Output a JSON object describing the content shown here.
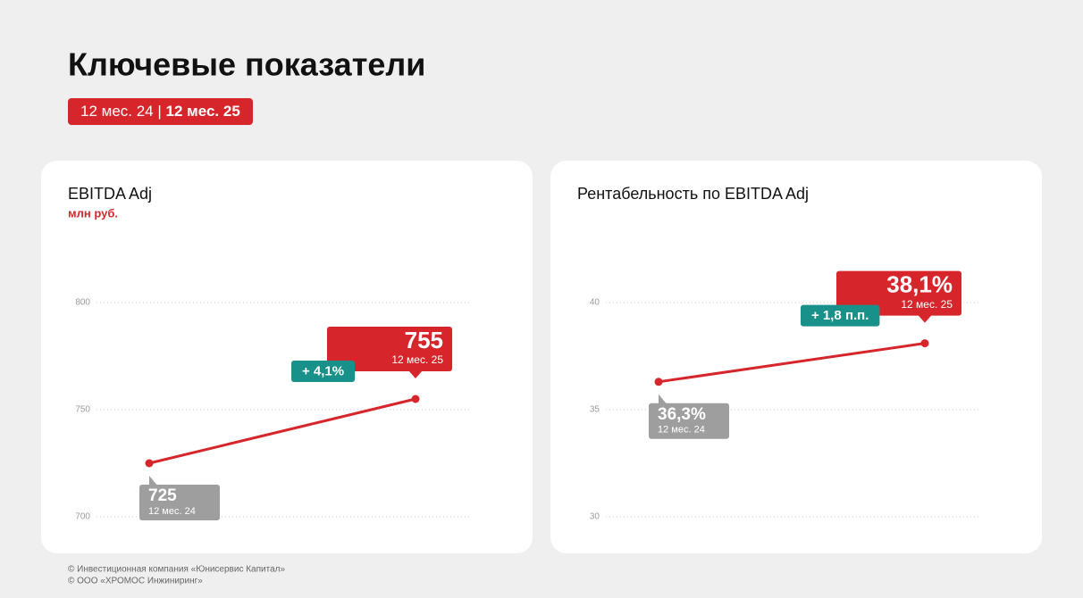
{
  "title": "Ключевые показатели",
  "period": {
    "previous": "12 мес. 24",
    "separator": "|",
    "current": "12 мес. 25"
  },
  "chart_data": [
    {
      "type": "line",
      "title": "EBITDA Adj",
      "subtitle": "млн руб.",
      "categories": [
        "12 мес. 24",
        "12 мес. 25"
      ],
      "values": [
        725,
        755
      ],
      "change": "+ 4,1%",
      "color": "#d7262b",
      "label_colors": [
        "#9e9e9e",
        "#d7262b"
      ],
      "change_color": "#17918a",
      "ylim": [
        700,
        800
      ],
      "yticks": [
        700,
        750,
        800
      ],
      "grid": true
    },
    {
      "type": "line",
      "title": "Рентабельность по EBITDA Adj",
      "categories": [
        "12 мес. 24",
        "12 мес. 25"
      ],
      "values": [
        36.3,
        38.1
      ],
      "value_labels": [
        "36,3%",
        "38,1%"
      ],
      "change": "+ 1,8 п.п.",
      "color": "#d7262b",
      "label_colors": [
        "#9e9e9e",
        "#d7262b"
      ],
      "change_color": "#17918a",
      "ylim": [
        30,
        40
      ],
      "yticks": [
        30,
        35,
        40
      ],
      "grid": true
    }
  ],
  "footer": [
    "© Инвестиционная компания «Юнисервис Капитал»",
    "© ООО «ХРОМОС Инжиниринг»"
  ]
}
